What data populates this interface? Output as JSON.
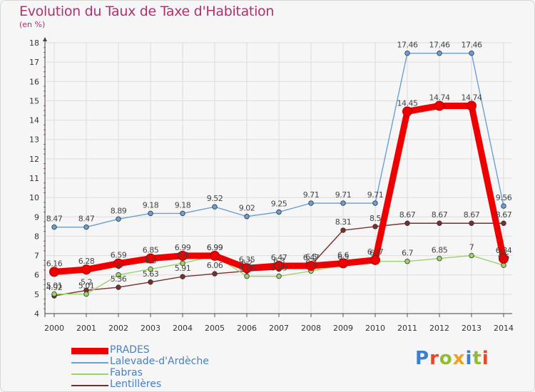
{
  "title": "Evolution du Taux de Taxe d'Habitation",
  "subtitle": "(en %)",
  "logo": {
    "text": "Proxiti",
    "letter_colors": [
      "#3b7fd0",
      "#e8452c",
      "#8fbe2f",
      "#f0a21b",
      "#3b7fd0",
      "#8fbe2f",
      "#e8452c"
    ]
  },
  "chart_data": {
    "type": "line",
    "title": "Evolution du Taux de Taxe d'Habitation",
    "ylabel": "(en %)",
    "xlabel": "",
    "ylim": [
      4,
      18
    ],
    "yticks": [
      "4",
      "5",
      "6",
      "7",
      "8",
      "9",
      "10",
      "11",
      "12",
      "13",
      "14",
      "15",
      "16",
      "17",
      "18"
    ],
    "grid": true,
    "legend_position": "bottom-left",
    "x": [
      "2000",
      "2001",
      "2002",
      "2003",
      "2004",
      "2005",
      "2006",
      "2007",
      "2008",
      "2009",
      "2010",
      "2011",
      "2012",
      "2013",
      "2014"
    ],
    "series": [
      {
        "name": "Lentillères",
        "color": "#7a2e2e",
        "values": [
          4.92,
          5.2,
          5.36,
          5.63,
          5.91,
          6.06,
          6.2,
          6.3,
          6.5,
          8.31,
          8.5,
          8.67,
          8.67,
          8.67,
          8.67
        ],
        "labels": [
          "4.92",
          "5.2",
          "5.36",
          "5.63",
          "5.91",
          "6.06",
          "6.2",
          "6.3",
          "6.5",
          "8.31",
          "8.5",
          "8.67",
          "8.67",
          "8.67",
          "8.67"
        ]
      },
      {
        "name": "Fabras",
        "color": "#9ed36a",
        "values": [
          5.01,
          5.01,
          6.0,
          6.3,
          6.6,
          6.99,
          5.93,
          5.93,
          6.2,
          6.5,
          6.7,
          6.7,
          6.85,
          7.0,
          6.5
        ],
        "labels": [
          "5.01",
          "5.01",
          "6",
          "6.3",
          "6.6",
          "6.99",
          "5.93",
          "5.93",
          "6.2",
          "6.5",
          "6.7",
          "6.7",
          "6.85",
          "7",
          "6.5"
        ]
      },
      {
        "name": "Lalevade-d'Ardèche",
        "color": "#6a9fd4",
        "values": [
          8.47,
          8.47,
          8.89,
          9.18,
          9.18,
          9.52,
          9.02,
          9.25,
          9.71,
          9.71,
          9.71,
          17.46,
          17.46,
          17.46,
          9.56
        ],
        "labels": [
          "8.47",
          "8.47",
          "8.89",
          "9.18",
          "9.18",
          "9.52",
          "9.02",
          "9.25",
          "9.71",
          "9.71",
          "9.71",
          "17.46",
          "17.46",
          "17.46",
          "9.56"
        ]
      },
      {
        "name": "PRADES",
        "color": "#ee0000",
        "values": [
          6.16,
          6.28,
          6.59,
          6.85,
          6.99,
          6.99,
          6.35,
          6.47,
          6.47,
          6.6,
          6.77,
          14.45,
          14.74,
          14.74,
          6.84
        ],
        "labels": [
          "6.16",
          "6.28",
          "6.59",
          "6.85",
          "6.99",
          "6.99",
          "6.35",
          "6.47",
          "6.47",
          "6.6",
          "6.77",
          "14.45",
          "14.74",
          "14.74",
          "6.84"
        ]
      }
    ],
    "legend_order": [
      "PRADES",
      "Lalevade-d'Ardèche",
      "Fabras",
      "Lentillères"
    ]
  }
}
